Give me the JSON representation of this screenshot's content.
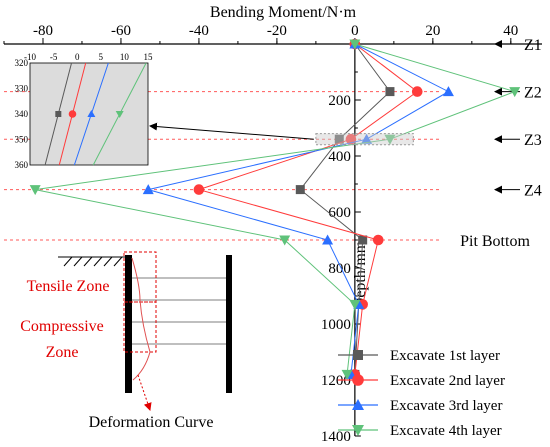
{
  "chart_data": {
    "type": "line",
    "title": "Bending Moment/N·m",
    "xlabel": "Bending Moment/N·m",
    "ylabel": "Depth/mm",
    "x_axis_position": "top",
    "y_axis_inverted": true,
    "xlim": [
      -90,
      48
    ],
    "ylim": [
      0,
      1400
    ],
    "x_ticks": [
      -80,
      -60,
      -40,
      -20,
      0,
      20,
      40
    ],
    "y_ticks": [
      200,
      400,
      600,
      800,
      1000,
      1200,
      1400
    ],
    "grid": false,
    "legend_position": "bottom-right",
    "series": [
      {
        "name": "Excavate 1st layer",
        "color": "#595959",
        "marker": "square",
        "x": [
          0,
          9,
          -4,
          -14,
          2,
          1,
          0
        ],
        "y": [
          0,
          170,
          340,
          520,
          700,
          930,
          1180
        ]
      },
      {
        "name": "Excavate 2nd layer",
        "color": "#ff3b3b",
        "marker": "circle",
        "x": [
          0,
          16,
          -1,
          -40,
          6,
          2,
          0
        ],
        "y": [
          0,
          170,
          340,
          520,
          700,
          930,
          1180
        ]
      },
      {
        "name": "Excavate 3rd layer",
        "color": "#2b6fff",
        "marker": "triangle-up",
        "x": [
          0,
          24,
          3,
          -53,
          -7,
          1,
          -1
        ],
        "y": [
          0,
          170,
          340,
          520,
          700,
          930,
          1180
        ]
      },
      {
        "name": "Excavate 4th layer",
        "color": "#5fc27a",
        "marker": "triangle-down",
        "x": [
          0,
          41,
          9,
          -82,
          -18,
          0,
          -2
        ],
        "y": [
          0,
          170,
          340,
          520,
          700,
          930,
          1180
        ]
      }
    ],
    "reference_lines": [
      {
        "label": "Z1",
        "depth": 0
      },
      {
        "label": "Z2",
        "depth": 170
      },
      {
        "label": "Z3",
        "depth": 340
      },
      {
        "label": "Z4",
        "depth": 520
      },
      {
        "label": "Pit Bottom",
        "depth": 700
      }
    ],
    "inset": {
      "xlim": [
        -10,
        15
      ],
      "ylim": [
        320,
        360
      ],
      "x_ticks": [
        -10,
        -5,
        0,
        5,
        10,
        15
      ],
      "y_ticks": [
        320,
        330,
        340,
        350,
        360
      ],
      "points": [
        {
          "series": "Excavate 1st layer",
          "x": -4,
          "y": 340
        },
        {
          "series": "Excavate 2nd layer",
          "x": -1,
          "y": 340
        },
        {
          "series": "Excavate 3rd layer",
          "x": 3,
          "y": 340
        },
        {
          "series": "Excavate 4th layer",
          "x": 9,
          "y": 340
        }
      ]
    },
    "diagram_labels": {
      "tensile": "Tensile Zone",
      "compressive_1": "Compressive",
      "compressive_2": "Zone",
      "deformation": "Deformation Curve"
    }
  }
}
